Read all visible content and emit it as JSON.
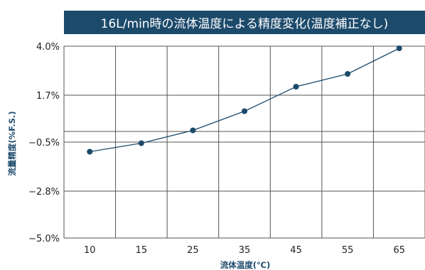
{
  "chart_data": {
    "type": "line",
    "title": "16L/min時の流体温度による精度変化(温度補正なし)",
    "xlabel": "流体温度(℃)",
    "ylabel": "流量精度(%F.S.)",
    "categories": [
      "10",
      "15",
      "25",
      "35",
      "45",
      "55",
      "65"
    ],
    "y_ticks": [
      4.0,
      1.7,
      -0.5,
      -2.8,
      -5.0
    ],
    "y_tick_labels": [
      "4.0%",
      "1.7%",
      "−0.5%",
      "−2.8%",
      "−5.0%"
    ],
    "ylim": [
      -5.0,
      4.0
    ],
    "series": [
      {
        "values": [
          -0.95,
          -0.55,
          0.05,
          0.95,
          2.1,
          2.7,
          3.9
        ]
      }
    ],
    "grid": true,
    "colors": {
      "line": "#1c4a6b",
      "grid": "#555555",
      "title_bg": "#1c4a6b"
    }
  }
}
